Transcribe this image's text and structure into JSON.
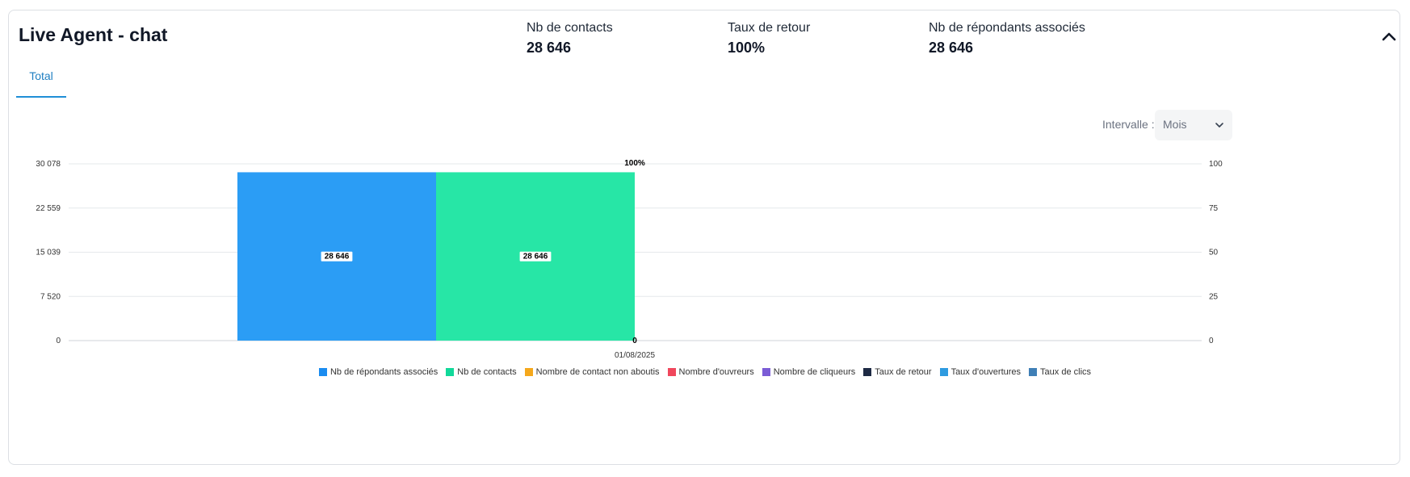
{
  "header": {
    "title": "Live Agent - chat",
    "stats": [
      {
        "label": "Nb de contacts",
        "value": "28 646"
      },
      {
        "label": "Taux de retour",
        "value": "100%"
      },
      {
        "label": "Nb de répondants associés",
        "value": "28 646"
      }
    ]
  },
  "tabs": [
    {
      "label": "Total",
      "active": true
    }
  ],
  "interval": {
    "label": "Intervalle :",
    "value": "Mois"
  },
  "chart_data": {
    "type": "bar",
    "categories": [
      "01/08/2025"
    ],
    "left_axis": {
      "ticks": [
        "0",
        "7 520",
        "15 039",
        "22 559",
        "30 078"
      ],
      "min": 0,
      "max": 30078
    },
    "right_axis": {
      "ticks": [
        "0",
        "25",
        "50",
        "75",
        "100"
      ],
      "min": 0,
      "max": 100
    },
    "series": [
      {
        "name": "Nb de répondants associés",
        "color": "#2b9df5",
        "axis": "left",
        "values": [
          28646
        ],
        "labels": [
          "28 646"
        ]
      },
      {
        "name": "Nb de contacts",
        "color": "#27e6a6",
        "axis": "left",
        "values": [
          28646
        ],
        "labels": [
          "28 646"
        ]
      }
    ],
    "line_labels": [
      {
        "text": "100%",
        "value": 100,
        "axis": "right"
      },
      {
        "text": "0",
        "value": 0,
        "axis": "right"
      }
    ],
    "grid": true,
    "legend": {
      "placement": "bottom",
      "items": [
        {
          "name": "Nb de répondants associés",
          "color": "#1a8cf0"
        },
        {
          "name": "Nb de contacts",
          "color": "#11d99a"
        },
        {
          "name": "Nombre de contact non aboutis",
          "color": "#f5a81c"
        },
        {
          "name": "Nombre d'ouvreurs",
          "color": "#f0475c"
        },
        {
          "name": "Nombre de cliqueurs",
          "color": "#7b5cd6"
        },
        {
          "name": "Taux de retour",
          "color": "#1e2a44"
        },
        {
          "name": "Taux d'ouvertures",
          "color": "#2e9be0"
        },
        {
          "name": "Taux de clics",
          "color": "#3f7fb6"
        }
      ]
    }
  }
}
